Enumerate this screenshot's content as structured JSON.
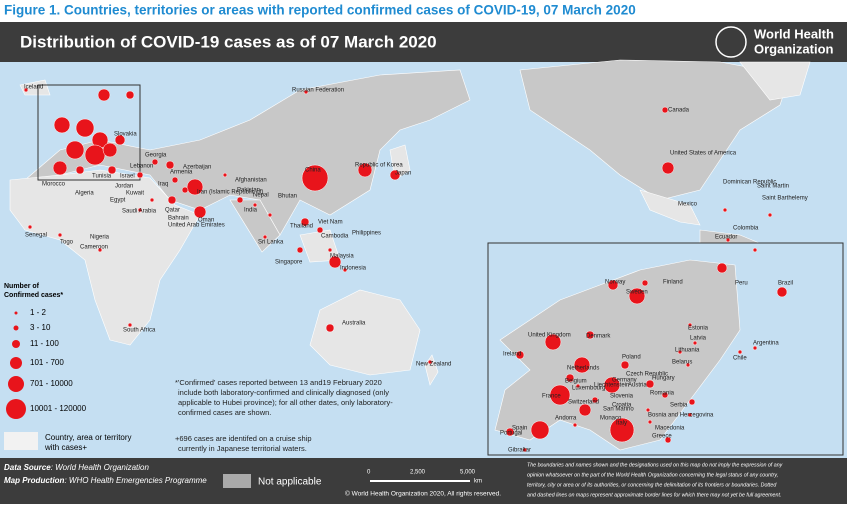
{
  "figure_title": "Figure 1. Countries, territories or areas with reported confirmed cases of COVID-19, 07 March 2020",
  "map_title": "Distribution of COVID-19 cases as of 07 March 2020",
  "logo": {
    "line1": "World Health",
    "line2": "Organization"
  },
  "legend": {
    "title": [
      "Number of",
      "Confirmed cases*"
    ],
    "items": [
      "1 - 2",
      "3 - 10",
      "11 - 100",
      "101 - 700",
      "701 - 10000",
      "10001 - 120000"
    ],
    "area": [
      "Country, area or territory",
      "with cases+"
    ]
  },
  "notes": {
    "confirmed": [
      "*'Confirmed' cases reported between 13 and19 February 2020",
      "include both laboratory-confirmed and clinically diagnosed (only",
      "applicable to Hubei province); for all other dates, only laboratory-",
      "confirmed cases are shown."
    ],
    "cruise": [
      "+696 cases are identifed on a cruise ship",
      "currently in Japanese territorial waters."
    ]
  },
  "labels": [
    "Iceland",
    "Russian Federation",
    "Canada",
    "United States of America",
    "Mexico",
    "Dominican Republic",
    "Saint Martin",
    "Saint Barthelemy",
    "Colombia",
    "Ecuador",
    "Peru",
    "Brazil",
    "Chile",
    "Argentina",
    "Morocco",
    "Algeria",
    "Tunisia",
    "Senegal",
    "Togo",
    "Nigeria",
    "Cameroon",
    "South Africa",
    "Egypt",
    "Saudi Arabia",
    "Qatar",
    "Bahrain",
    "Kuwait",
    "Jordan",
    "Iraq",
    "Iran (Islamic Republic of)",
    "Afghanistan",
    "Pakistan",
    "Georgia",
    "Azerbaijan",
    "Armenia",
    "Israel",
    "Lebanon",
    "United Arab Emirates",
    "Oman",
    "India",
    "Nepal",
    "Bhutan",
    "Sri Lanka",
    "China",
    "Republic of Korea",
    "Japan",
    "Thailand",
    "Viet Nam",
    "Cambodia",
    "Philippines",
    "Malaysia",
    "Singapore",
    "Indonesia",
    "Australia",
    "New Zealand",
    "Slovakia"
  ],
  "inset_labels": [
    "Finland",
    "Norway",
    "Sweden",
    "Estonia",
    "Latvia",
    "Lithuania",
    "Belarus",
    "Denmark",
    "United Kingdom",
    "Ireland",
    "Netherlands",
    "Belgium",
    "Luxembourg",
    "Poland",
    "Germany",
    "Czech Republic",
    "Liechtenstein",
    "Austria",
    "Hungary",
    "Slovenia",
    "Croatia",
    "Romania",
    "Serbia",
    "Bosnia and Herzegovina",
    "France",
    "Switzerland",
    "San Marino",
    "Monaco",
    "Italy",
    "Andorra",
    "Macedonia",
    "Greece",
    "Portugal",
    "Spain",
    "Gibraltar"
  ],
  "footer": {
    "source_label": "Data Source",
    "source": ": World Health Organization",
    "production_label": "Map Production",
    "production": ": WHO Health Emergencies Programme",
    "not_applicable": "Not applicable",
    "scale": [
      "0",
      "2,500",
      "5,000"
    ],
    "scale_unit": "km",
    "copyright": "© World Health Organization 2020, All rights reserved.",
    "disclaimer": [
      "The boundaries and names shown and the designations used on this map do not imply the expression of any",
      "opinion whatsoever on the part of the World Health Organization concerning the legal status of any country,",
      "territory, city or area or of its authorities, or concerning the delimitation of its frontiers or boundaries. Dotted",
      "and dashed lines on maps represent approximate border lines for which there may not yet be full agreement."
    ]
  }
}
